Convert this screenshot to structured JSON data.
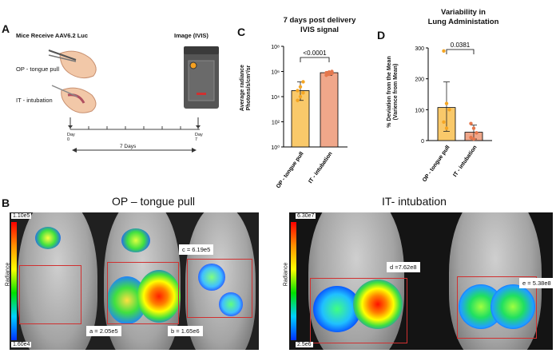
{
  "panel_a": {
    "letter": "A",
    "left_title": "Mice Receive AAV6.2 Luc",
    "right_title": "Image (IVIS)",
    "op_label": "OP - tongue pull",
    "it_label": "IT - intubation",
    "day0": "Day\n0",
    "day7": "Day\n7",
    "duration": "7  Days"
  },
  "panel_b": {
    "letter": "B",
    "op_title": "OP – tongue pull",
    "it_title": "IT- intubation",
    "op_scale_max": "1.10e5",
    "op_scale_min": "1.60e4",
    "it_scale_max": "6.30e7",
    "it_scale_min": "2.5e6",
    "radiance_label": "Radiance",
    "op_callouts": {
      "a": "a = 2.05e5",
      "b": "b = 1.65e6",
      "c": "c = 6.19e5"
    },
    "it_callouts": {
      "d": "d =7.62e8",
      "e": "e = 5.38e8"
    }
  },
  "panel_c": {
    "letter": "C",
    "title_line1": "7 days post delivery",
    "title_line2": "IVIS signal",
    "ylabel_line1": "Average radiance",
    "ylabel_line2": "Photons/s/cm²/sr",
    "pvalue": "<0.0001",
    "ytick_labels": [
      "10⁰",
      "10²",
      "10⁴",
      "10⁶",
      "10⁸"
    ],
    "colors": {
      "op": "#f9c96a",
      "it": "#f0a78a",
      "op_dot": "#f5a623",
      "it_dot": "#e5774c"
    }
  },
  "panel_d": {
    "letter": "D",
    "title_line1": "Variability in",
    "title_line2": "Lung Administation",
    "ylabel_line1": "% Deviation from the Mean",
    "ylabel_line2": "(Varience from Mean)",
    "pvalue": "0.0381",
    "ytick_labels": [
      "0",
      "100",
      "200",
      "300"
    ]
  },
  "chart_data": [
    {
      "type": "bar",
      "title": "7 days post delivery IVIS signal",
      "ylabel": "Average radiance Photons/s/cm²/sr",
      "yscale": "log",
      "ylim": [
        1,
        100000000
      ],
      "categories": [
        "OP - tongue pull",
        "IT - intubation"
      ],
      "values": [
        30000,
        800000
      ],
      "error_low": [
        5000,
        500000
      ],
      "error_high": [
        150000,
        1000000
      ],
      "points": [
        [
          5000,
          10000,
          20000,
          30000,
          60000,
          150000
        ],
        [
          500000,
          600000,
          700000,
          800000,
          900000,
          1000000
        ]
      ],
      "annotation": "<0.0001"
    },
    {
      "type": "bar",
      "title": "Variability in Lung Administation",
      "ylabel": "% Deviation from the Mean (Varience from Mean)",
      "ylim": [
        0,
        300
      ],
      "categories": [
        "OP - tongue pull",
        "IT - intubation"
      ],
      "values": [
        107,
        27
      ],
      "error_low": [
        30,
        5
      ],
      "error_high": [
        190,
        50
      ],
      "points": [
        [
          290,
          120,
          100,
          60,
          40
        ],
        [
          55,
          40,
          25,
          10,
          5
        ]
      ],
      "annotation": "0.0381"
    }
  ]
}
